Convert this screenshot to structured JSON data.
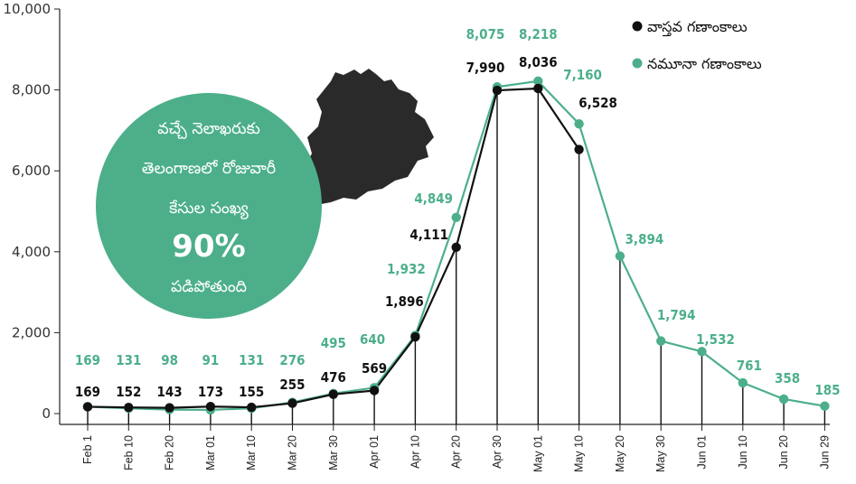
{
  "chart_data": {
    "type": "line",
    "categories": [
      "Feb 1",
      "Feb 10",
      "Feb 20",
      "Mar 01",
      "Mar 10",
      "Mar 20",
      "Mar 30",
      "Apr 01",
      "Apr 10",
      "Apr 20",
      "Apr 30",
      "May 01",
      "May 10",
      "May 20",
      "May 30",
      "Jun 01",
      "Jun 10",
      "Jun 20",
      "Jun 29"
    ],
    "series": [
      {
        "name": "వాస్తవ గణాంకాలు",
        "color": "#111111",
        "values": [
          169,
          152,
          143,
          173,
          155,
          255,
          476,
          569,
          1896,
          4111,
          7990,
          8036,
          6528,
          null,
          null,
          null,
          null,
          null,
          null
        ],
        "labels": [
          "169",
          "152",
          "143",
          "173",
          "155",
          "255",
          "476",
          "569",
          "1,896",
          "4,111",
          "7,990",
          "8,036",
          "6,528",
          "",
          "",
          "",
          "",
          "",
          ""
        ]
      },
      {
        "name": "నమూనా గణాంకాలు",
        "color": "#4caf8a",
        "values": [
          169,
          131,
          98,
          91,
          131,
          276,
          495,
          640,
          1932,
          4849,
          8075,
          8218,
          7160,
          3894,
          1794,
          1532,
          761,
          358,
          185
        ],
        "labels": [
          "169",
          "131",
          "98",
          "91",
          "131",
          "276",
          "495",
          "640",
          "1,932",
          "4,849",
          "8,075",
          "8,218",
          "7,160",
          "3,894",
          "1,794",
          "1,532",
          "761",
          "358",
          "185"
        ]
      }
    ],
    "yticks": [
      "0",
      "2,000",
      "4,000",
      "6,000",
      "8,000",
      "10,000"
    ],
    "ylim": [
      0,
      10000
    ],
    "grid": false,
    "legend_position": "top-right"
  },
  "callout": {
    "lines": [
      "వచ్చే నెలాఖరుకు",
      "తెలంగాణలో రోజువారీ",
      "కేసుల సంఖ్య",
      "90%",
      "పడిపోతుంది"
    ],
    "color": "#4caf8a"
  },
  "map": {
    "color": "#2a2a2a"
  }
}
